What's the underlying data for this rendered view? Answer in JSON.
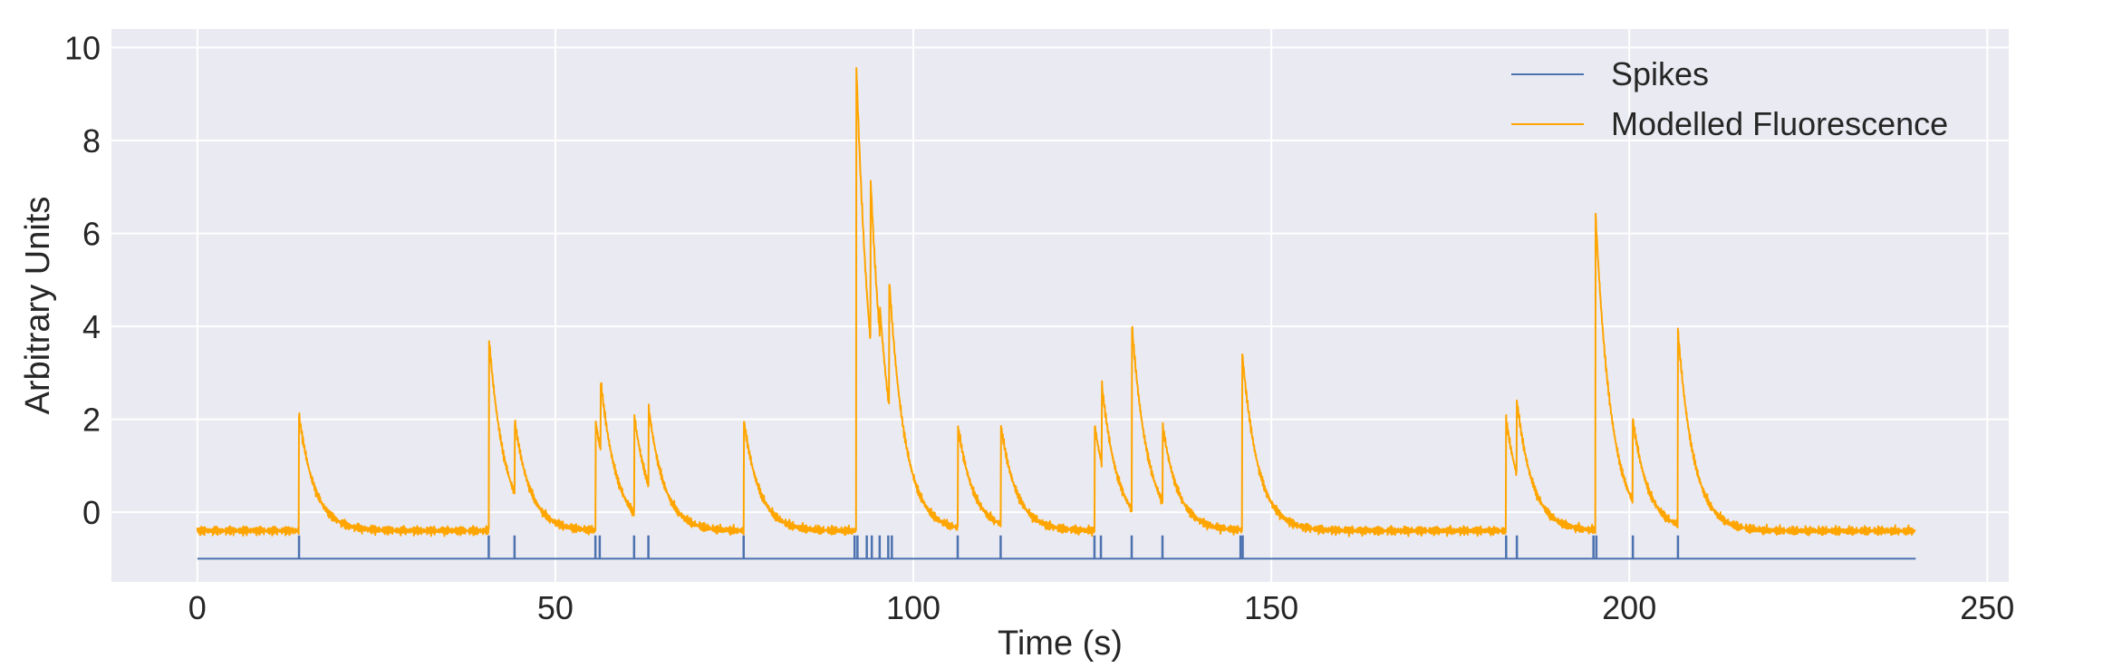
{
  "chart_data": {
    "type": "line",
    "xlabel": "Time (s)",
    "ylabel": "Arbitrary Units",
    "xlim": [
      -12,
      253
    ],
    "ylim": [
      -1.5,
      10.4
    ],
    "xticks": [
      0,
      50,
      100,
      150,
      200,
      250
    ],
    "yticks": [
      0,
      2,
      4,
      6,
      8,
      10
    ],
    "grid": true,
    "legend_position": "top-right",
    "background_color": "#eaeaf2",
    "baseline_fluorescence": -0.4,
    "series": [
      {
        "name": "Spikes",
        "color": "#4c72b0",
        "baseline": -1.0,
        "spike_times": [
          14.2,
          40.7,
          44.3,
          55.6,
          56.2,
          61.0,
          63.0,
          76.3,
          91.8,
          92.2,
          93.5,
          94.2,
          95.3,
          96.5,
          97.0,
          106.2,
          112.2,
          125.3,
          126.2,
          130.5,
          134.8,
          145.7,
          146.0,
          182.8,
          184.3,
          195.0,
          195.4,
          200.5,
          206.8
        ],
        "t_end": 240
      },
      {
        "name": "Modelled Fluorescence",
        "color": "#ffa500",
        "peaks": [
          {
            "t": 14.2,
            "y": 2.1
          },
          {
            "t": 40.7,
            "y": 3.8
          },
          {
            "t": 44.3,
            "y": 2.0
          },
          {
            "t": 55.6,
            "y": 2.0
          },
          {
            "t": 56.3,
            "y": 2.9
          },
          {
            "t": 61.0,
            "y": 2.1
          },
          {
            "t": 63.0,
            "y": 2.3
          },
          {
            "t": 76.3,
            "y": 2.0
          },
          {
            "t": 92.0,
            "y": 9.8
          },
          {
            "t": 94.0,
            "y": 7.3
          },
          {
            "t": 95.3,
            "y": 4.5
          },
          {
            "t": 96.6,
            "y": 5.1
          },
          {
            "t": 106.2,
            "y": 1.9
          },
          {
            "t": 112.2,
            "y": 1.9
          },
          {
            "t": 125.3,
            "y": 1.9
          },
          {
            "t": 126.3,
            "y": 2.8
          },
          {
            "t": 130.5,
            "y": 4.1
          },
          {
            "t": 134.8,
            "y": 1.9
          },
          {
            "t": 145.9,
            "y": 3.5
          },
          {
            "t": 182.8,
            "y": 2.0
          },
          {
            "t": 184.3,
            "y": 2.4
          },
          {
            "t": 195.3,
            "y": 6.4
          },
          {
            "t": 200.5,
            "y": 2.0
          },
          {
            "t": 206.8,
            "y": 3.9
          }
        ],
        "t_start": 0,
        "t_end": 240
      }
    ]
  }
}
